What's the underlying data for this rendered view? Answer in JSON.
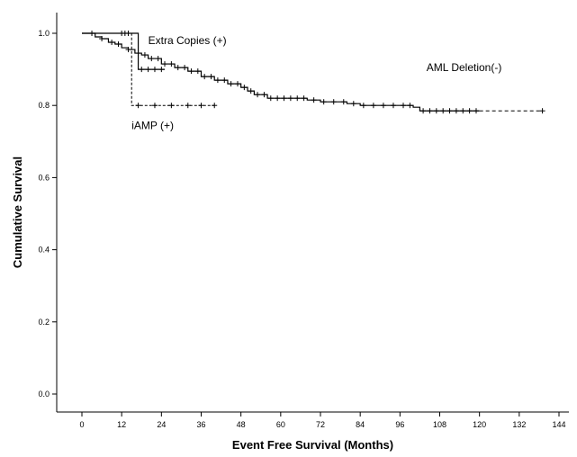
{
  "chart_data": {
    "type": "line",
    "title": "",
    "xlabel": "Event Free Survival (Months)",
    "ylabel": "Cumulative Survival",
    "xlim": [
      0,
      144
    ],
    "ylim": [
      0.0,
      1.0
    ],
    "x_ticks": [
      0,
      12,
      24,
      36,
      48,
      60,
      72,
      84,
      96,
      108,
      120,
      132,
      144
    ],
    "y_ticks": [
      0.0,
      0.2,
      0.4,
      0.6,
      0.8,
      1.0
    ],
    "y_tick_labels": [
      "0.0",
      "0.2",
      "0.4",
      "0.6",
      "0.8",
      "1.0"
    ],
    "grid": false,
    "series": [
      {
        "label": "AML Deletion(-)",
        "style": "solid-then-dashed",
        "color": "#000000",
        "points": [
          [
            0,
            1.0
          ],
          [
            2,
            1.0
          ],
          [
            4,
            0.99
          ],
          [
            6,
            0.985
          ],
          [
            8,
            0.975
          ],
          [
            10,
            0.97
          ],
          [
            12,
            0.96
          ],
          [
            14,
            0.955
          ],
          [
            16,
            0.945
          ],
          [
            18,
            0.94
          ],
          [
            20,
            0.93
          ],
          [
            24,
            0.915
          ],
          [
            28,
            0.905
          ],
          [
            32,
            0.895
          ],
          [
            36,
            0.88
          ],
          [
            40,
            0.87
          ],
          [
            44,
            0.86
          ],
          [
            48,
            0.85
          ],
          [
            50,
            0.84
          ],
          [
            52,
            0.83
          ],
          [
            56,
            0.82
          ],
          [
            60,
            0.82
          ],
          [
            64,
            0.82
          ],
          [
            68,
            0.815
          ],
          [
            72,
            0.81
          ],
          [
            76,
            0.81
          ],
          [
            80,
            0.805
          ],
          [
            84,
            0.8
          ],
          [
            90,
            0.8
          ],
          [
            96,
            0.8
          ],
          [
            100,
            0.795
          ],
          [
            102,
            0.785
          ],
          [
            108,
            0.785
          ],
          [
            120,
            0.785
          ],
          [
            130,
            0.785
          ],
          [
            139,
            0.785
          ]
        ],
        "dashed_from_x": 120,
        "censored": [
          3,
          6,
          9,
          11,
          14,
          17,
          19,
          21,
          23,
          25,
          27,
          29,
          31,
          33,
          35,
          37,
          39,
          41,
          43,
          45,
          47,
          49,
          51,
          53,
          55,
          57,
          59,
          61,
          63,
          65,
          67,
          70,
          73,
          76,
          79,
          82,
          85,
          88,
          91,
          94,
          97,
          99,
          103,
          105,
          107,
          109,
          111,
          113,
          115,
          117,
          119,
          139
        ]
      },
      {
        "label": "Extra Copies (+)",
        "style": "solid",
        "color": "#000000",
        "points": [
          [
            0,
            1.0
          ],
          [
            17,
            1.0
          ],
          [
            17,
            0.9
          ],
          [
            25,
            0.9
          ]
        ],
        "censored": [
          12,
          13,
          14,
          18,
          20,
          22,
          24
        ]
      },
      {
        "label": "iAMP (+)",
        "style": "dashed",
        "color": "#000000",
        "points": [
          [
            0,
            1.0
          ],
          [
            15,
            1.0
          ],
          [
            15,
            0.8
          ],
          [
            40,
            0.8
          ]
        ],
        "censored": [
          17,
          22,
          27,
          32,
          36,
          40
        ]
      }
    ],
    "annotations": [
      {
        "text": "Extra Copies (+)",
        "x": 20,
        "y": 0.98
      },
      {
        "text": "iAMP (+)",
        "x": 15,
        "y": 0.745
      },
      {
        "text": "AML Deletion(-)",
        "x": 104,
        "y": 0.905
      }
    ]
  }
}
